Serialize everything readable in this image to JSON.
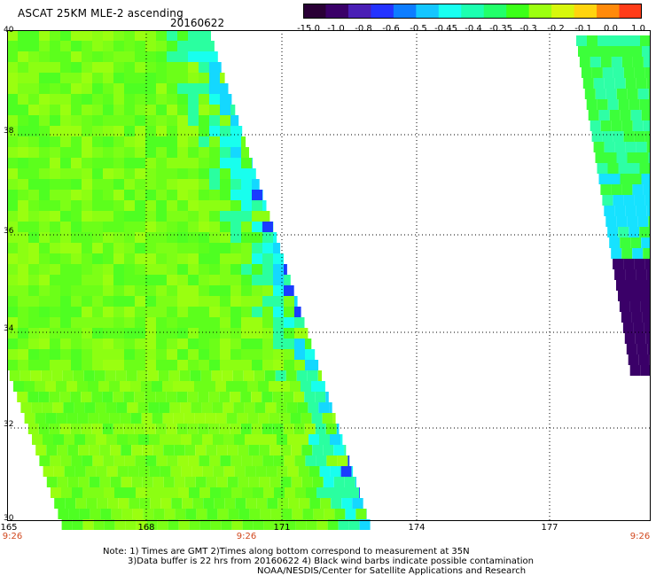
{
  "header": {
    "title": "ASCAT 25KM MLE-2 ascending",
    "date": "20160622"
  },
  "colorbar": {
    "colors": [
      "#2a0036",
      "#3a0068",
      "#4a1fb5",
      "#2433ff",
      "#0d7dff",
      "#14c6ff",
      "#18fff0",
      "#1cffb0",
      "#22ff6a",
      "#3cff18",
      "#9cff10",
      "#d7f70c",
      "#ffd40e",
      "#ff8a0a",
      "#ff3c18"
    ],
    "labels": [
      "-15.0",
      "-1.0",
      "-0.8",
      "-0.6",
      "-0.5",
      "-0.45",
      "-0.4",
      "-0.35",
      "-0.3",
      "-0.2",
      "-0.1",
      "0.0",
      "1.0"
    ]
  },
  "map": {
    "lat_labels": [
      "40",
      "38",
      "36",
      "34",
      "32",
      "30"
    ],
    "lon_labels": [
      "165",
      "168",
      "171",
      "174",
      "177"
    ],
    "time_labels": [
      "9:26",
      "9:26",
      "9:26"
    ]
  },
  "notes": {
    "line1": "Note: 1) Times are GMT 2)Times along bottom correspond to measurement at 35N",
    "line2": "3)Data buffer is 22 hrs from 20160622 4) Black wind barbs indicate possible contamination",
    "line3": "NOAA/NESDIS/Center for Satellite Applications and Research"
  }
}
